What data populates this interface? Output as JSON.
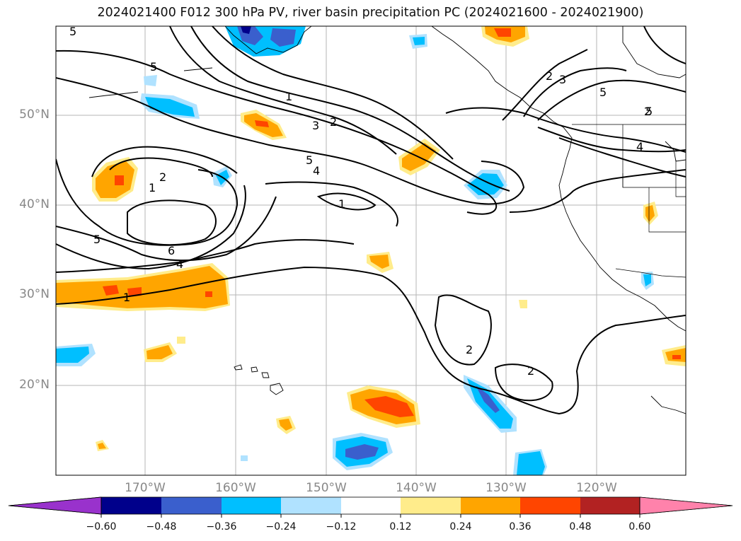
{
  "title": "2024021400 F012 300 hPa PV, river basin precipitation PC (2024021600 - 2024021900)",
  "latitude_labels": [
    "50°N",
    "40°N",
    "30°N",
    "20°N"
  ],
  "longitude_labels": [
    "170°W",
    "160°W",
    "150°W",
    "140°W",
    "130°W",
    "120°W"
  ],
  "colorbar": {
    "ticks": [
      "−0.60",
      "−0.48",
      "−0.36",
      "−0.24",
      "−0.12",
      "0.12",
      "0.24",
      "0.36",
      "0.48",
      "0.60"
    ],
    "colors": [
      "#9932cc",
      "#00008b",
      "#3a5fcd",
      "#00bfff",
      "#b0e2ff",
      "#ffffff",
      "#ffec8b",
      "#ffa500",
      "#ff4500",
      "#b22222",
      "#ff82ab"
    ]
  },
  "contour_labels": [
    "5",
    "5",
    "1",
    "2",
    "3",
    "2",
    "5",
    "4",
    "1",
    "2",
    "1",
    "5",
    "6",
    "4",
    "1",
    "2",
    "3",
    "5",
    "5",
    "4",
    "2",
    "2"
  ]
}
